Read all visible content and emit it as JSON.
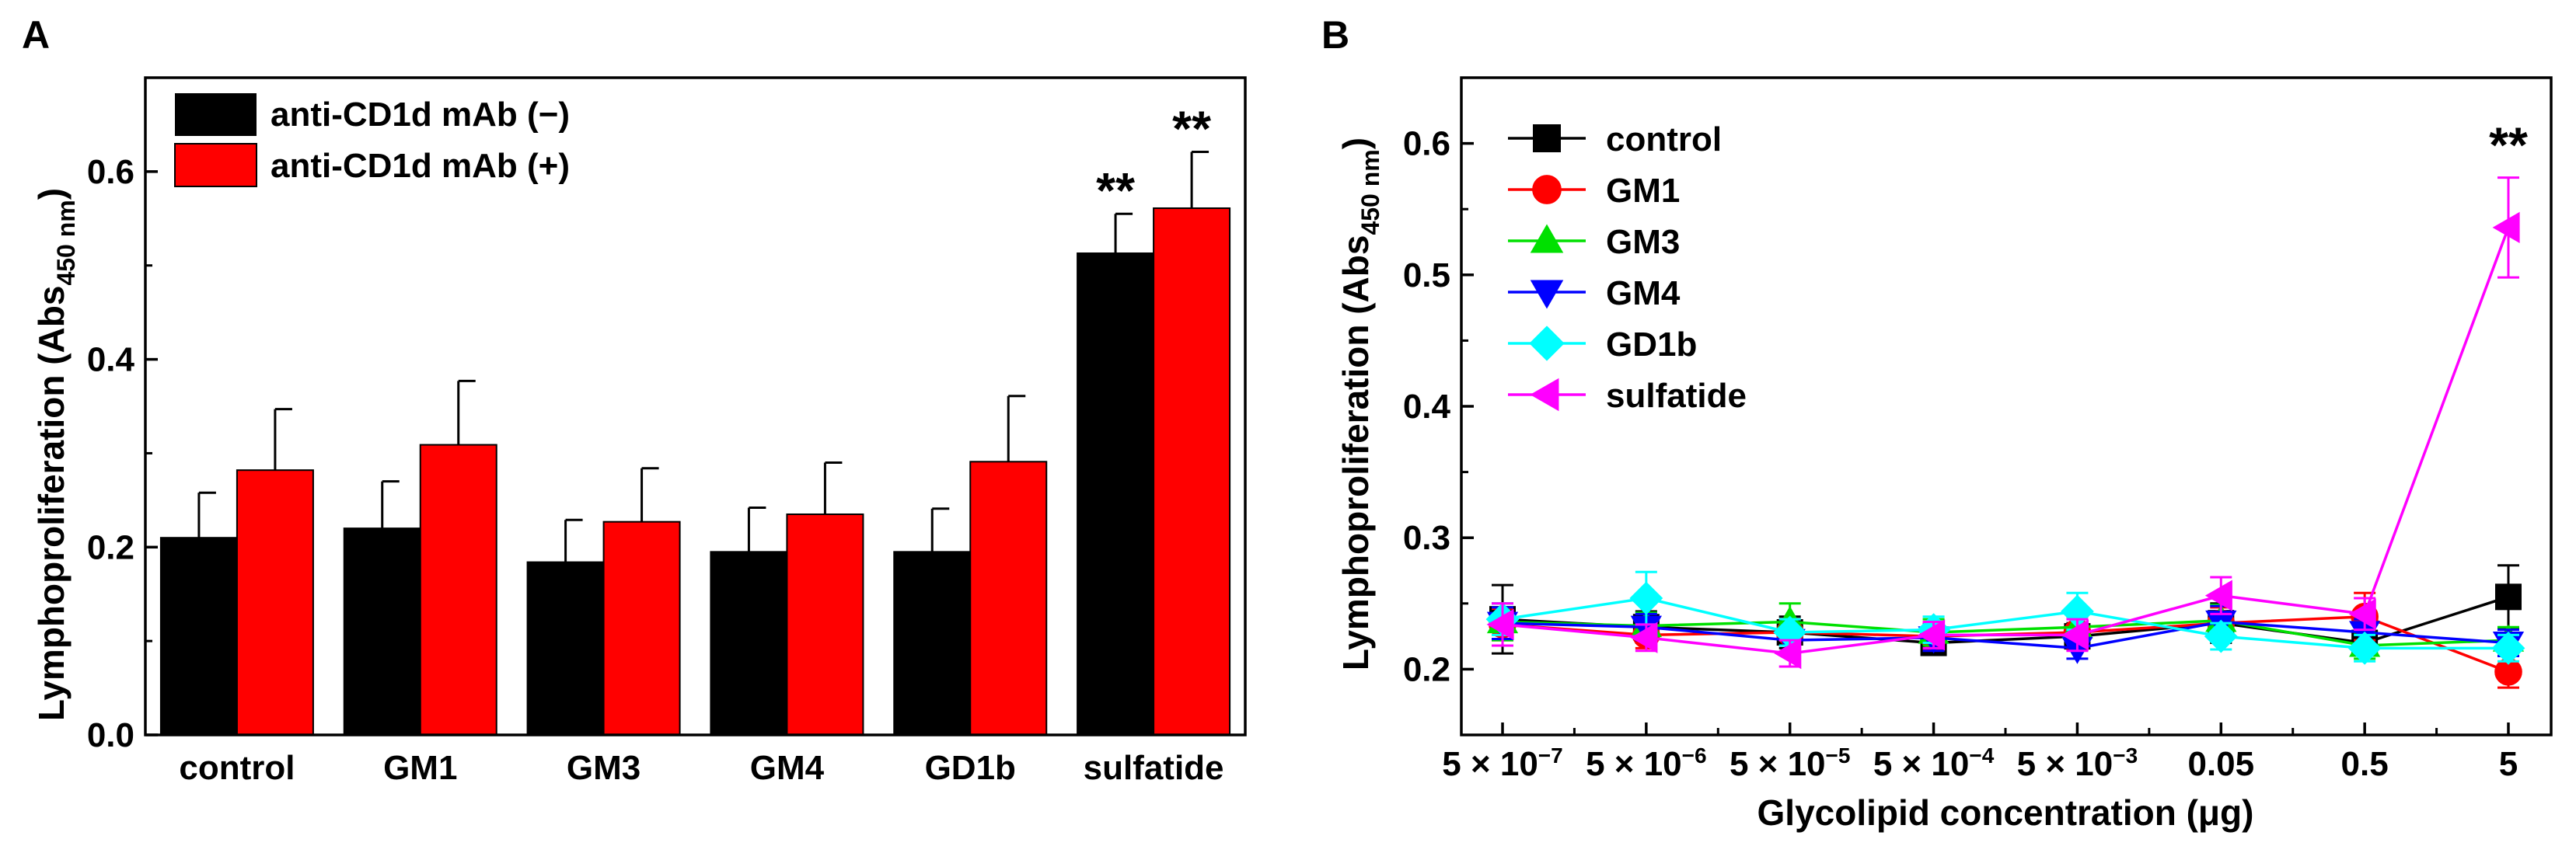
{
  "chart_data": [
    {
      "panel": "A",
      "type": "bar",
      "title": "",
      "xlabel": "",
      "ylabel_main": "Lymphoproliferation (Abs",
      "ylabel_sub": "450 nm",
      "ylabel_close": ")",
      "ylim": [
        0,
        0.7
      ],
      "yticks": [
        0.0,
        0.2,
        0.4,
        0.6
      ],
      "ytick_labels": [
        "0.0",
        "0.2",
        "0.4",
        "0.6"
      ],
      "categories": [
        "control",
        "GM1",
        "GM3",
        "GM4",
        "GD1b",
        "sulfatide"
      ],
      "series": [
        {
          "name": "anti-CD1d mAb (−)",
          "color": "#000000",
          "values": [
            0.21,
            0.22,
            0.184,
            0.195,
            0.195,
            0.513
          ],
          "errors": [
            0.048,
            0.05,
            0.045,
            0.047,
            0.046,
            0.042
          ]
        },
        {
          "name": "anti-CD1d mAb (+)",
          "color": "#ff0000",
          "values": [
            0.282,
            0.309,
            0.227,
            0.235,
            0.291,
            0.561
          ],
          "errors": [
            0.065,
            0.068,
            0.057,
            0.055,
            0.07,
            0.06
          ]
        }
      ],
      "annotations": [
        {
          "category": "sulfatide",
          "series": 0,
          "text": "**"
        },
        {
          "category": "sulfatide",
          "series": 1,
          "text": "**"
        }
      ],
      "legend_position": "top-left"
    },
    {
      "panel": "B",
      "type": "line",
      "title": "",
      "xlabel": "Glycolipid concentration (μg)",
      "ylabel_main": "Lymphoproliferation (Abs",
      "ylabel_sub": "450 nm",
      "ylabel_close": ")",
      "ylim": [
        0.15,
        0.65
      ],
      "yticks": [
        0.2,
        0.3,
        0.4,
        0.5,
        0.6
      ],
      "ytick_labels": [
        "0.2",
        "0.3",
        "0.4",
        "0.5",
        "0.6"
      ],
      "x": [
        {
          "base": "5 × 10",
          "exp": "−7"
        },
        {
          "base": "5 × 10",
          "exp": "−6"
        },
        {
          "base": "5 × 10",
          "exp": "−5"
        },
        {
          "base": "5 × 10",
          "exp": "−4"
        },
        {
          "base": "5 × 10",
          "exp": "−3"
        },
        {
          "base": "0.05",
          "exp": ""
        },
        {
          "base": "0.5",
          "exp": ""
        },
        {
          "base": "5",
          "exp": ""
        }
      ],
      "series": [
        {
          "name": "control",
          "color": "#000000",
          "marker": "square",
          "values": [
            0.238,
            0.232,
            0.228,
            0.22,
            0.225,
            0.235,
            0.22,
            0.255
          ],
          "errors": [
            0.026,
            0.012,
            0.012,
            0.008,
            0.01,
            0.015,
            0.008,
            0.024
          ]
        },
        {
          "name": "GM1",
          "color": "#ff0000",
          "marker": "circle",
          "values": [
            0.234,
            0.226,
            0.228,
            0.225,
            0.228,
            0.235,
            0.24,
            0.198
          ],
          "errors": [
            0.012,
            0.01,
            0.01,
            0.01,
            0.012,
            0.012,
            0.018,
            0.012
          ]
        },
        {
          "name": "GM3",
          "color": "#00e000",
          "marker": "triangle-up",
          "values": [
            0.236,
            0.233,
            0.236,
            0.228,
            0.232,
            0.237,
            0.218,
            0.222
          ],
          "errors": [
            0.014,
            0.01,
            0.014,
            0.01,
            0.012,
            0.012,
            0.01,
            0.01
          ]
        },
        {
          "name": "GM4",
          "color": "#0000ff",
          "marker": "triangle-down",
          "values": [
            0.235,
            0.232,
            0.222,
            0.224,
            0.216,
            0.236,
            0.228,
            0.22
          ],
          "errors": [
            0.012,
            0.01,
            0.01,
            0.01,
            0.008,
            0.012,
            0.01,
            0.01
          ]
        },
        {
          "name": "GD1b",
          "color": "#00ffff",
          "marker": "diamond",
          "values": [
            0.238,
            0.254,
            0.228,
            0.23,
            0.244,
            0.225,
            0.216,
            0.216
          ],
          "errors": [
            0.012,
            0.02,
            0.01,
            0.01,
            0.014,
            0.01,
            0.01,
            0.01
          ]
        },
        {
          "name": "sulfatide",
          "color": "#ff00ff",
          "marker": "triangle-left",
          "values": [
            0.234,
            0.224,
            0.212,
            0.226,
            0.226,
            0.256,
            0.242,
            0.536
          ],
          "errors": [
            0.016,
            0.01,
            0.01,
            0.01,
            0.012,
            0.014,
            0.012,
            0.038
          ]
        }
      ],
      "annotations": [
        {
          "x_index": 7,
          "text": "**"
        }
      ],
      "legend_position": "top-left"
    }
  ]
}
